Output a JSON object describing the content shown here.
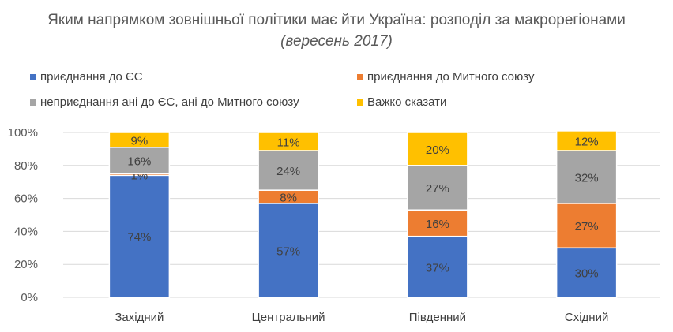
{
  "chart_data": {
    "type": "bar",
    "stacked": true,
    "title": "Яким напрямком зовнішньої політики має йти Україна: розподіл за макрорегіонами",
    "title_italic": "(вересень 2017)",
    "categories": [
      "Західний",
      "Центральний",
      "Південний",
      "Східний"
    ],
    "series": [
      {
        "name": "приєднання до ЄС",
        "color": "#4472C4",
        "values": [
          74,
          57,
          37,
          30
        ]
      },
      {
        "name": "приєднання до Митного союзу",
        "color": "#ED7D31",
        "values": [
          1,
          8,
          16,
          27
        ]
      },
      {
        "name": "неприєднання ані до ЄС, ані до Митного союзу",
        "color": "#A5A5A5",
        "values": [
          16,
          24,
          27,
          32
        ]
      },
      {
        "name": "Важко сказати",
        "color": "#FFC000",
        "values": [
          9,
          11,
          20,
          12
        ]
      }
    ],
    "yticks": [
      "0%",
      "20%",
      "40%",
      "60%",
      "80%",
      "100%"
    ],
    "ylim": [
      0,
      100
    ],
    "grid": true,
    "legend_position": "top"
  }
}
